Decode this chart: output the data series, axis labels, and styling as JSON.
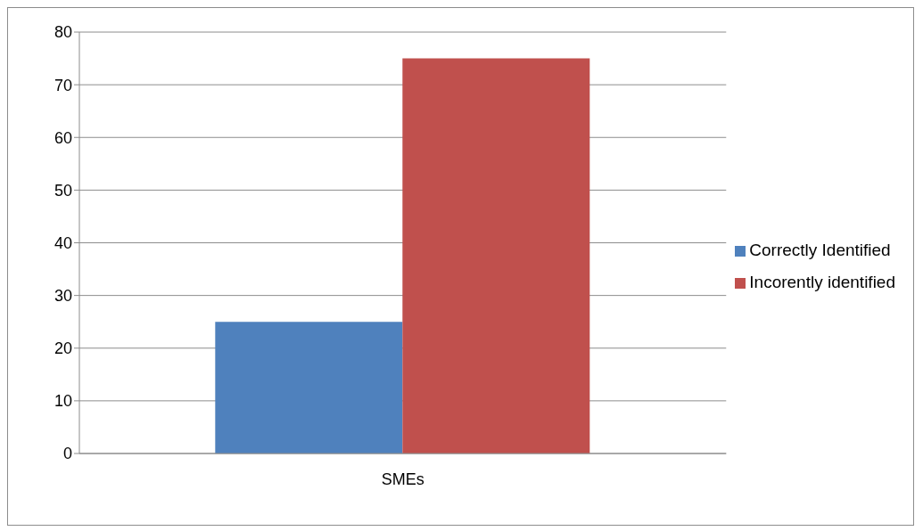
{
  "chart_data": {
    "type": "bar",
    "categories": [
      "SMEs"
    ],
    "series": [
      {
        "name": "Correctly Identified",
        "color": "#4f81bd",
        "values": [
          25
        ]
      },
      {
        "name": "Incorently identified",
        "color": "#c0504d",
        "values": [
          75
        ]
      }
    ],
    "ylim": [
      0,
      80
    ],
    "yticks": [
      0,
      10,
      20,
      30,
      40,
      50,
      60,
      70,
      80
    ],
    "grid": "y",
    "legend": "right"
  }
}
